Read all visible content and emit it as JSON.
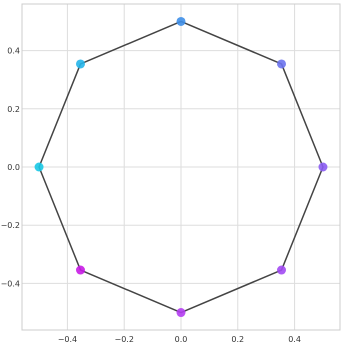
{
  "chart_data": {
    "type": "scatter",
    "title": "",
    "xlabel": "",
    "ylabel": "",
    "xlim": [
      -0.56,
      0.56
    ],
    "ylim": [
      -0.56,
      0.56
    ],
    "xticks": [
      -0.4,
      -0.2,
      0.0,
      0.2,
      0.4
    ],
    "yticks": [
      -0.4,
      -0.2,
      0.0,
      0.2,
      0.4
    ],
    "xtick_labels": [
      "−0.4",
      "−0.2",
      "0.0",
      "0.2",
      "0.4"
    ],
    "ytick_labels": [
      "−0.4",
      "−0.2",
      "0.0",
      "0.2",
      "0.4"
    ],
    "grid": true,
    "closed_polygon": true,
    "points": [
      {
        "x": 0.0,
        "y": 0.5,
        "color": "#3f8fe8"
      },
      {
        "x": 0.354,
        "y": 0.354,
        "color": "#6b73ee"
      },
      {
        "x": 0.5,
        "y": 0.0,
        "color": "#8a5cf2"
      },
      {
        "x": 0.354,
        "y": -0.354,
        "color": "#a24af3"
      },
      {
        "x": 0.0,
        "y": -0.5,
        "color": "#b43df2"
      },
      {
        "x": -0.354,
        "y": -0.354,
        "color": "#c81be6"
      },
      {
        "x": -0.5,
        "y": 0.0,
        "color": "#18c8e6"
      },
      {
        "x": -0.354,
        "y": 0.354,
        "color": "#25b5ea"
      }
    ],
    "line_color": "#444444",
    "grid_color": "#dddddd",
    "frame_color": "#cccccc"
  }
}
